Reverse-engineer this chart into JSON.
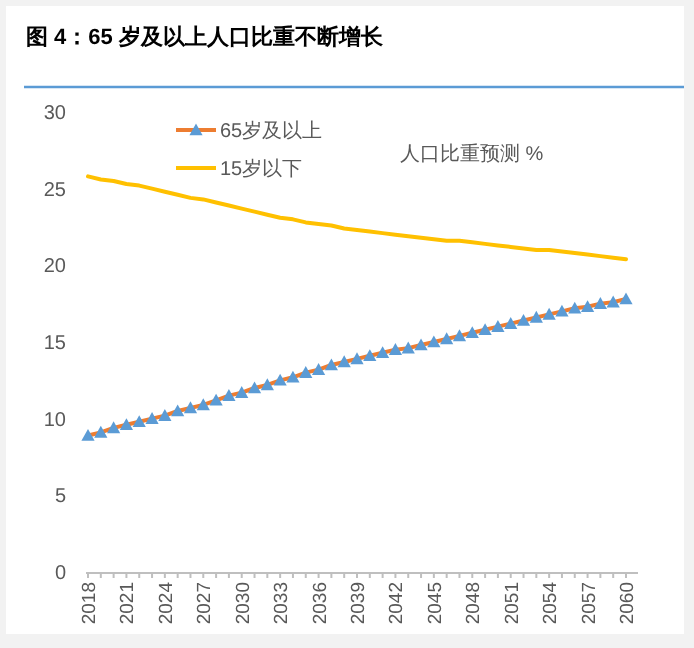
{
  "chart_data": {
    "type": "line",
    "title": "图 4：65 岁及以上人口比重不断增长",
    "annotations": [
      "人口比重预测 %"
    ],
    "categories": [
      "2018",
      null,
      null,
      "2021",
      null,
      null,
      "2024",
      null,
      null,
      "2027",
      null,
      null,
      "2030",
      null,
      null,
      "2033",
      null,
      null,
      "2036",
      null,
      null,
      "2039",
      null,
      null,
      "2042",
      null,
      null,
      "2045",
      null,
      null,
      "2048",
      null,
      null,
      "2051",
      null,
      null,
      "2054",
      null,
      null,
      "2057",
      null,
      null,
      "2060"
    ],
    "series": [
      {
        "name": "65岁及以上",
        "color": "#ed7d31",
        "marker": "triangle",
        "values": [
          8.9,
          9.1,
          9.4,
          9.6,
          9.8,
          10.0,
          10.2,
          10.5,
          10.7,
          10.9,
          11.2,
          11.5,
          11.7,
          12.0,
          12.2,
          12.5,
          12.7,
          13.0,
          13.2,
          13.5,
          13.7,
          13.9,
          14.1,
          14.3,
          14.5,
          14.6,
          14.8,
          15.0,
          15.2,
          15.4,
          15.6,
          15.8,
          16.0,
          16.2,
          16.4,
          16.6,
          16.8,
          17.0,
          17.2,
          17.3,
          17.5,
          17.6,
          17.8
        ]
      },
      {
        "name": "15岁以下",
        "color": "#ffc000",
        "values": [
          25.8,
          25.6,
          25.5,
          25.3,
          25.2,
          25.0,
          24.8,
          24.6,
          24.4,
          24.3,
          24.1,
          23.9,
          23.7,
          23.5,
          23.3,
          23.1,
          23.0,
          22.8,
          22.7,
          22.6,
          22.4,
          22.3,
          22.2,
          22.1,
          22.0,
          21.9,
          21.8,
          21.7,
          21.6,
          21.6,
          21.5,
          21.4,
          21.3,
          21.2,
          21.1,
          21.0,
          21.0,
          20.9,
          20.8,
          20.7,
          20.6,
          20.5,
          20.4
        ]
      }
    ],
    "ylim": [
      0,
      30
    ],
    "yticks": [
      0,
      5,
      10,
      15,
      20,
      25,
      30
    ],
    "grid": false,
    "legend": "top left"
  }
}
